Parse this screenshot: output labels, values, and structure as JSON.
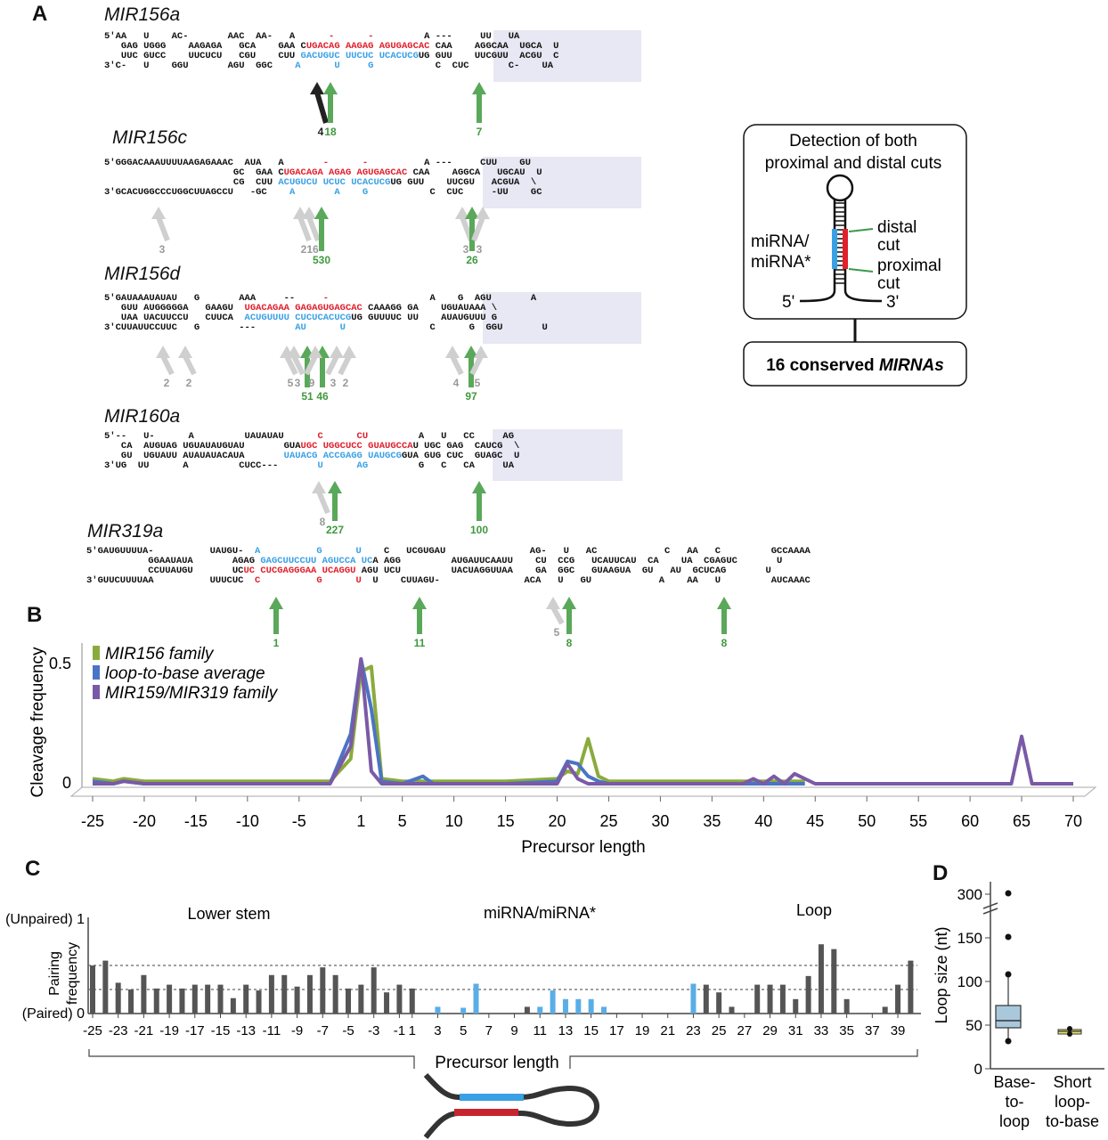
{
  "panels": {
    "a": "A",
    "b": "B",
    "c": "C",
    "d": "D"
  },
  "structures": [
    {
      "name": "MIR156a",
      "lines": [
        [
          [
            "5′AA   U    AC-       AAC  AA-   A      ",
            ""
          ],
          [
            "-      -     ",
            "r"
          ],
          [
            "    A ---     UU   UA",
            ""
          ]
        ],
        [
          [
            "   GAG UGGG    AAGAGA   GCA    GAA C",
            ""
          ],
          [
            "UGACAG AAGAG AGUGAGCAC",
            "r"
          ],
          [
            " CAA    AGGCAA  UGCA  U",
            ""
          ]
        ],
        [
          [
            "   UUC GUCC    UUCUCU   CGU    CUU ",
            ""
          ],
          [
            "GACUGUC UUCUC UCACUCG",
            "b"
          ],
          [
            "UG GUU    UUCGUU  ACGU  C",
            ""
          ]
        ],
        [
          [
            "3′C-   U    GGU       AGU  GGC    ",
            ""
          ],
          [
            "A      U     G       ",
            "b"
          ],
          [
            "    C  CUC       C-    UA",
            ""
          ]
        ]
      ],
      "arrows": [
        {
          "label": "4",
          "kind": "black"
        },
        {
          "label": "18",
          "kind": "green"
        },
        {
          "label": "7",
          "kind": "green"
        }
      ]
    },
    {
      "name": "MIR156c",
      "lines": [
        [
          [
            "5′GGGACAAAUUUUAAGAGAAAC  AUA   A       ",
            ""
          ],
          [
            "-      -     ",
            "r"
          ],
          [
            "     A ---     CUU    GU",
            ""
          ]
        ],
        [
          [
            "                       GC  GAA C",
            ""
          ],
          [
            "UGACAGA AGAG AGUGAGCAC",
            "r"
          ],
          [
            " CAA    AGGCA   UGCAU  U",
            ""
          ]
        ],
        [
          [
            "                       CG  CUU ",
            ""
          ],
          [
            "ACUGUCU UCUC UCACUCG",
            "b"
          ],
          [
            "UG GUU    UUCGU   ACGUA  \\",
            ""
          ]
        ],
        [
          [
            "3′GCACUGGCCCUGGCUUAGCCU   -GC    ",
            ""
          ],
          [
            "A       A    G       ",
            "b"
          ],
          [
            "    C  CUC     -UU    GC",
            ""
          ]
        ]
      ],
      "arrows": [
        {
          "label": "3",
          "kind": "gray"
        },
        {
          "label": "2",
          "kind": "gray"
        },
        {
          "label": "16",
          "kind": "gray"
        },
        {
          "label": "530",
          "kind": "green"
        },
        {
          "label": "3",
          "kind": "gray"
        },
        {
          "label": "26",
          "kind": "green"
        },
        {
          "label": "3",
          "kind": "gray"
        }
      ]
    },
    {
      "name": "MIR156d",
      "lines": [
        [
          [
            "5′GAUAAAUAUAU   G       AAA     --     ",
            ""
          ],
          [
            "-            ",
            "r"
          ],
          [
            "      A    G  AGU       A",
            ""
          ]
        ],
        [
          [
            "   GUU AUGGGGGA   GAAGU  ",
            ""
          ],
          [
            "UGACAGAA GAGAGUGAGCAC",
            "r"
          ],
          [
            " CAAAGG GA    UGUAUAAA \\",
            ""
          ]
        ],
        [
          [
            "   UAA UACUUCCU   CUUCA  ",
            ""
          ],
          [
            "ACUGUUUU CUCUCACUCG",
            "b"
          ],
          [
            "UG GUUUUC UU    AUAUGUUU G",
            ""
          ]
        ],
        [
          [
            "3′CUUAUUCCUUC   G       ---       ",
            ""
          ],
          [
            "AU      U            ",
            "b"
          ],
          [
            "   C      G  GGU       U",
            ""
          ]
        ]
      ],
      "arrows": [
        {
          "label": "2",
          "kind": "gray"
        },
        {
          "label": "2",
          "kind": "gray"
        },
        {
          "label": "5",
          "kind": "gray"
        },
        {
          "label": "3",
          "kind": "gray"
        },
        {
          "label": "51",
          "kind": "green"
        },
        {
          "label": "46",
          "kind": "green"
        },
        {
          "label": "9",
          "kind": "gray"
        },
        {
          "label": "3",
          "kind": "gray"
        },
        {
          "label": "2",
          "kind": "gray"
        },
        {
          "label": "4",
          "kind": "gray"
        },
        {
          "label": "97",
          "kind": "green"
        },
        {
          "label": "5",
          "kind": "gray"
        }
      ]
    },
    {
      "name": "MIR160a",
      "lines": [
        [
          [
            "5′--   U-      A         UAUAUAU      ",
            ""
          ],
          [
            "C      CU       ",
            "r"
          ],
          [
            "  A   U   CC     AG",
            ""
          ]
        ],
        [
          [
            "   CA  AUGUAG UGUAUAUGUAU       GUA",
            ""
          ],
          [
            "UGC UGGCUCC GUAUGCCA",
            "r"
          ],
          [
            "U UGC GAG  CAUCG  \\",
            ""
          ]
        ],
        [
          [
            "   GU  UGUAUU AUAUAUACAUA       ",
            ""
          ],
          [
            "UAUACG ACCGAGG UAUGCG",
            "b"
          ],
          [
            "GUA GUG CUC  GUAGC  U",
            ""
          ]
        ],
        [
          [
            "3′UG  UU      A         CUCC---    ",
            ""
          ],
          [
            "   U      AG       ",
            "b"
          ],
          [
            "  G   C   CA     UA",
            ""
          ]
        ]
      ],
      "arrows": [
        {
          "label": "8",
          "kind": "gray"
        },
        {
          "label": "227",
          "kind": "green"
        },
        {
          "label": "100",
          "kind": "green"
        }
      ]
    },
    {
      "name": "MIR319a",
      "lines": [
        [
          [
            "5′GAUGUUUUA-          UAUGU-  ",
            ""
          ],
          [
            "A          G      U",
            "b"
          ],
          [
            "    C   UCGUGAU               AG-   U   AC            C   AA   C         GCCAAAA",
            ""
          ]
        ],
        [
          [
            "           GGAAUAUA       AGAG ",
            ""
          ],
          [
            "GAGCUUCCUU AGUCCA UC",
            "b"
          ],
          [
            "A AGG         AUGAUUCAAUU    CU  CCG   UCAUUCAU  CA    UA  CGAGUC       U",
            ""
          ]
        ],
        [
          [
            "           CCUUAUGU       UC",
            ""
          ],
          [
            "UC CUCGAGGGAA UCAGGU",
            "r"
          ],
          [
            " AGU UCU         UACUAGGUUAA    GA  GGC   GUAAGUA  GU   AU  GCUCAG       U",
            ""
          ]
        ],
        [
          [
            "3′GUUCUUUUAA          UUUCUC  ",
            ""
          ],
          [
            "C          G      U",
            "r"
          ],
          [
            "  U    CUUAGU-               ACA   U   GU            A    AA   U         AUCAAAC",
            ""
          ]
        ]
      ],
      "arrows": [
        {
          "label": "1",
          "kind": "green"
        },
        {
          "label": "11",
          "kind": "green"
        },
        {
          "label": "5",
          "kind": "gray"
        },
        {
          "label": "8",
          "kind": "green"
        },
        {
          "label": "8",
          "kind": "green"
        }
      ]
    }
  ],
  "schematic": {
    "title_line1": "Detection of both",
    "title_line2": "proximal and distal cuts",
    "label_mirna_line1": "miRNA/",
    "label_mirna_line2": "miRNA*",
    "label_distal_line1": "distal",
    "label_distal_line2": "cut",
    "label_proximal_line1": "proximal",
    "label_proximal_line2": "cut",
    "end5": "5'",
    "end3": "3'",
    "count_prefix": "16 conserved ",
    "count_italic": "MIRNAs",
    "colors": {
      "mirna": "#3aa0e6",
      "star": "#e0202c",
      "cut_line": "#3a9a4a"
    }
  },
  "chart_b": {
    "ylabel": "Cleavage frequency",
    "xlabel": "Precursor length",
    "y_ticks": [
      "0.5",
      "0"
    ],
    "x_ticks": [
      "-25",
      "-20",
      "-15",
      "-10",
      "-5",
      "1",
      "5",
      "10",
      "15",
      "20",
      "25",
      "30",
      "35",
      "40",
      "45",
      "50",
      "55",
      "60",
      "65",
      "70"
    ],
    "legend": [
      {
        "name": "MIR156 family",
        "color": "#8aab3c"
      },
      {
        "name": "loop-to-base average",
        "color": "#4a74c4"
      },
      {
        "name": "MIR159/MIR319 family",
        "color": "#7a5aa6"
      }
    ]
  },
  "chart_c": {
    "ylabel_line1": "Pairing",
    "ylabel_line2": "frequency",
    "y_top": "(Unpaired) 1",
    "y_bottom": "(Paired) 0",
    "region_lower": "Lower stem",
    "region_mirna": "miRNA/miRNA*",
    "region_loop": "Loop",
    "xlabel": "Precursor length",
    "x_ticks": [
      "-25",
      "-23",
      "-21",
      "-19",
      "-17",
      "-15",
      "-13",
      "-11",
      "-9",
      "-7",
      "-5",
      "-3",
      "-1",
      "1",
      "3",
      "5",
      "7",
      "9",
      "11",
      "13",
      "15",
      "17",
      "19",
      "21",
      "23",
      "25",
      "27",
      "29",
      "31",
      "33",
      "35",
      "37",
      "39"
    ],
    "colors": {
      "stem": "#555555",
      "mirna": "#5aaee6"
    }
  },
  "chart_d": {
    "ylabel": "Loop size (nt)",
    "y_ticks": [
      "300",
      "150",
      "100",
      "50",
      "0"
    ],
    "categories_line1": [
      "Base-",
      "Short"
    ],
    "categories_line2": [
      "to-",
      "loop-"
    ],
    "categories_line3": [
      "loop",
      "to-base"
    ]
  },
  "chart_data": [
    {
      "type": "line",
      "xlabel": "Precursor length",
      "ylabel": "Cleavage frequency",
      "ylim": [
        0,
        0.55
      ],
      "series": [
        {
          "name": "MIR156 family",
          "x": [
            -25,
            -23,
            -22,
            -20,
            -15,
            -10,
            -5,
            -2,
            0,
            1,
            2,
            3,
            5,
            10,
            15,
            20,
            21,
            22,
            23,
            24,
            25,
            30,
            35,
            40,
            44
          ],
          "y": [
            0.02,
            0.01,
            0.02,
            0.01,
            0.01,
            0.01,
            0.01,
            0.01,
            0.1,
            0.45,
            0.47,
            0.02,
            0.01,
            0.01,
            0.01,
            0.02,
            0.05,
            0.04,
            0.18,
            0.03,
            0.01,
            0.01,
            0.01,
            0.01,
            0.01
          ]
        },
        {
          "name": "loop-to-base average",
          "x": [
            -25,
            -23,
            -22,
            -20,
            -15,
            -10,
            -5,
            -2,
            0,
            1,
            2,
            3,
            5,
            7,
            8,
            10,
            15,
            20,
            21,
            22,
            23,
            24,
            25,
            30,
            35,
            40,
            44
          ],
          "y": [
            0.01,
            0.0,
            0.01,
            0.0,
            0.0,
            0.0,
            0.0,
            0.0,
            0.2,
            0.5,
            0.3,
            0.01,
            0.0,
            0.03,
            0.0,
            0.0,
            0.0,
            0.01,
            0.09,
            0.08,
            0.03,
            0.01,
            0.0,
            0.0,
            0.0,
            0.0,
            0.0
          ]
        },
        {
          "name": "MIR159/MIR319 family",
          "x": [
            -25,
            -23,
            -22,
            -20,
            -15,
            -10,
            -5,
            -2,
            0,
            1,
            2,
            3,
            5,
            10,
            15,
            20,
            21,
            22,
            23,
            25,
            30,
            35,
            38,
            39,
            40,
            41,
            42,
            43,
            45,
            50,
            60,
            64,
            65,
            66,
            70
          ],
          "y": [
            0.0,
            0.0,
            0.01,
            0.0,
            0.0,
            0.0,
            0.0,
            0.0,
            0.15,
            0.5,
            0.05,
            0.0,
            0.0,
            0.0,
            0.0,
            0.0,
            0.08,
            0.02,
            0.0,
            0.0,
            0.0,
            0.0,
            0.0,
            0.02,
            0.0,
            0.03,
            0.0,
            0.04,
            0.0,
            0.0,
            0.0,
            0.0,
            0.19,
            0.0,
            0.0
          ]
        }
      ]
    },
    {
      "type": "bar",
      "xlabel": "Precursor length",
      "ylabel": "Pairing frequency",
      "ylim": [
        0,
        1
      ],
      "categories": [
        -25,
        -24,
        -23,
        -22,
        -21,
        -20,
        -19,
        -18,
        -17,
        -16,
        -15,
        -14,
        -13,
        -12,
        -11,
        -10,
        -9,
        -8,
        -7,
        -6,
        -5,
        -4,
        -3,
        -2,
        -1,
        1,
        2,
        3,
        4,
        5,
        6,
        7,
        8,
        9,
        10,
        11,
        12,
        13,
        14,
        15,
        16,
        17,
        18,
        19,
        20,
        21,
        22,
        23,
        24,
        25,
        26,
        27,
        28,
        29,
        30,
        31,
        32,
        33,
        34,
        35,
        36,
        37,
        38,
        39,
        40
      ],
      "values": [
        0.5,
        0.55,
        0.32,
        0.25,
        0.4,
        0.26,
        0.3,
        0.26,
        0.3,
        0.3,
        0.3,
        0.16,
        0.3,
        0.24,
        0.4,
        0.4,
        0.28,
        0.4,
        0.48,
        0.4,
        0.26,
        0.3,
        0.48,
        0.22,
        0.3,
        0.26,
        0,
        0.07,
        0,
        0.06,
        0.31,
        0,
        0,
        0,
        0.07,
        0.07,
        0.24,
        0.15,
        0.15,
        0.15,
        0.07,
        0,
        0,
        0,
        0,
        0,
        0,
        0.31,
        0.3,
        0.22,
        0.07,
        0,
        0.3,
        0.3,
        0.3,
        0.15,
        0.39,
        0.72,
        0.67,
        0.15,
        0,
        0,
        0.07,
        0.3,
        0.55
      ],
      "mirna_positions": [
        3,
        5,
        6,
        11,
        12,
        13,
        14,
        15,
        16,
        23
      ],
      "threshold_lines": [
        0.25,
        0.5
      ]
    },
    {
      "type": "box",
      "ylabel": "Loop size (nt)",
      "series": [
        {
          "name": "Base-to-loop",
          "q1": 45,
          "median": 52,
          "q3": 72,
          "whisker_low": 33,
          "whisker_high": 92,
          "outliers": [
            30,
            108,
            150,
            300
          ]
        },
        {
          "name": "Short loop-to-base",
          "q1": 40,
          "median": 42,
          "q3": 44,
          "whisker_low": 40,
          "whisker_high": 46,
          "outliers": [
            46
          ]
        }
      ]
    }
  ]
}
